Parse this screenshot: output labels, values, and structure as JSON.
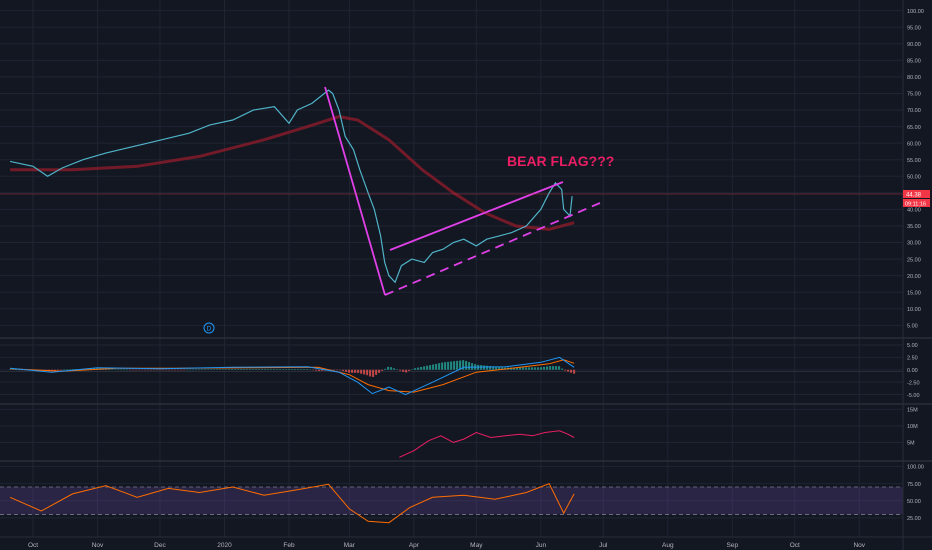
{
  "colors": {
    "background": "#131722",
    "grid": "#1f2433",
    "axis_text": "#b2b5be",
    "price": "#4fb3c8",
    "ma": "#8c1c2b",
    "trendline": "#e040e8",
    "annotation": "#e91e63",
    "price_tag": "#f23645",
    "macd": "#2196f3",
    "signal": "#ff6d00",
    "hist_up": "#26a69a",
    "hist_down": "#ef5350",
    "volume": "#e91e63",
    "rsi": "#ff6d00",
    "rsi_band": "#7e57c2"
  },
  "time_axis": {
    "labels": [
      "Oct",
      "Nov",
      "Dec",
      "2020",
      "Feb",
      "Mar",
      "Apr",
      "May",
      "Jun",
      "Jul",
      "Aug",
      "Sep",
      "Oct",
      "Nov"
    ]
  },
  "main_panel": {
    "annotation": "BEAR FLAG???",
    "price_tag": "44.38",
    "countdown_tag": "09:11:16",
    "event_marker": "D"
  },
  "chart_data": [
    {
      "type": "line",
      "panel": "price",
      "ylim": [
        3,
        102
      ],
      "yticks": [
        "100.00",
        "95.00",
        "90.00",
        "85.00",
        "80.00",
        "75.00",
        "70.00",
        "65.00",
        "60.00",
        "55.00",
        "50.00",
        "45.00",
        "40.00",
        "35.00",
        "30.00",
        "25.00",
        "20.00",
        "15.00",
        "10.00",
        "5.00"
      ],
      "series": [
        {
          "key": "price",
          "points": [
            [
              "2019-09-20",
              54.5
            ],
            [
              "2019-10-01",
              53
            ],
            [
              "2019-10-08",
              50
            ],
            [
              "2019-10-15",
              52.5
            ],
            [
              "2019-10-25",
              55
            ],
            [
              "2019-11-05",
              57
            ],
            [
              "2019-11-15",
              58.5
            ],
            [
              "2019-11-25",
              60
            ],
            [
              "2019-12-05",
              61.5
            ],
            [
              "2019-12-15",
              63
            ],
            [
              "2019-12-25",
              65.5
            ],
            [
              "2020-01-05",
              67
            ],
            [
              "2020-01-15",
              70
            ],
            [
              "2020-01-25",
              71
            ],
            [
              "2020-02-01",
              66
            ],
            [
              "2020-02-05",
              70
            ],
            [
              "2020-02-12",
              72
            ],
            [
              "2020-02-20",
              76
            ],
            [
              "2020-02-22",
              75
            ],
            [
              "2020-02-25",
              70
            ],
            [
              "2020-02-28",
              62
            ],
            [
              "2020-03-03",
              58
            ],
            [
              "2020-03-06",
              52
            ],
            [
              "2020-03-10",
              45
            ],
            [
              "2020-03-13",
              40
            ],
            [
              "2020-03-16",
              32
            ],
            [
              "2020-03-18",
              24
            ],
            [
              "2020-03-20",
              20
            ],
            [
              "2020-03-23",
              18
            ],
            [
              "2020-03-26",
              23
            ],
            [
              "2020-03-31",
              25
            ],
            [
              "2020-04-06",
              24
            ],
            [
              "2020-04-10",
              27
            ],
            [
              "2020-04-15",
              28
            ],
            [
              "2020-04-20",
              30
            ],
            [
              "2020-04-25",
              31
            ],
            [
              "2020-05-01",
              29
            ],
            [
              "2020-05-06",
              31
            ],
            [
              "2020-05-12",
              32
            ],
            [
              "2020-05-18",
              33
            ],
            [
              "2020-05-25",
              35
            ],
            [
              "2020-06-01",
              40
            ],
            [
              "2020-06-05",
              45
            ],
            [
              "2020-06-08",
              48
            ],
            [
              "2020-06-11",
              46
            ],
            [
              "2020-06-12",
              40
            ],
            [
              "2020-06-15",
              38
            ],
            [
              "2020-06-16",
              44
            ]
          ]
        },
        {
          "key": "ma",
          "points": [
            [
              "2019-09-20",
              52
            ],
            [
              "2019-10-20",
              52
            ],
            [
              "2019-11-20",
              53
            ],
            [
              "2019-12-20",
              56
            ],
            [
              "2020-01-20",
              61
            ],
            [
              "2020-02-10",
              65
            ],
            [
              "2020-02-25",
              68
            ],
            [
              "2020-03-05",
              67
            ],
            [
              "2020-03-20",
              61
            ],
            [
              "2020-04-05",
              52
            ],
            [
              "2020-04-20",
              45
            ],
            [
              "2020-05-05",
              39
            ],
            [
              "2020-05-20",
              35
            ],
            [
              "2020-06-05",
              34
            ],
            [
              "2020-06-17",
              36
            ]
          ]
        }
      ]
    },
    {
      "type": "bar",
      "panel": "macd",
      "ylim": [
        -6.5,
        6
      ],
      "yticks": [
        "5.00",
        "2.50",
        "0.00",
        "-2.50",
        "-5.00"
      ],
      "series": [
        {
          "key": "macd",
          "points": [
            [
              "2019-09-20",
              0.3
            ],
            [
              "2019-10-10",
              -0.5
            ],
            [
              "2019-11-01",
              0.4
            ],
            [
              "2019-12-01",
              0.2
            ],
            [
              "2020-01-05",
              0.5
            ],
            [
              "2020-02-10",
              0.6
            ],
            [
              "2020-02-25",
              -0.5
            ],
            [
              "2020-03-05",
              -2.5
            ],
            [
              "2020-03-12",
              -4.8
            ],
            [
              "2020-03-20",
              -3.5
            ],
            [
              "2020-03-28",
              -5
            ],
            [
              "2020-04-10",
              -2.5
            ],
            [
              "2020-04-25",
              0.5
            ],
            [
              "2020-05-15",
              0.6
            ],
            [
              "2020-06-01",
              1.5
            ],
            [
              "2020-06-10",
              2.5
            ],
            [
              "2020-06-17",
              0.5
            ]
          ]
        },
        {
          "key": "signal",
          "points": [
            [
              "2019-09-20",
              0.2
            ],
            [
              "2019-10-15",
              -0.3
            ],
            [
              "2019-11-10",
              0.3
            ],
            [
              "2019-12-10",
              0.3
            ],
            [
              "2020-01-15",
              0.4
            ],
            [
              "2020-02-15",
              0.5
            ],
            [
              "2020-03-01",
              -1
            ],
            [
              "2020-03-10",
              -3
            ],
            [
              "2020-03-20",
              -4.2
            ],
            [
              "2020-04-01",
              -4.5
            ],
            [
              "2020-04-15",
              -3
            ],
            [
              "2020-05-01",
              -0.5
            ],
            [
              "2020-05-20",
              0.4
            ],
            [
              "2020-06-05",
              1.2
            ],
            [
              "2020-06-12",
              2
            ],
            [
              "2020-06-17",
              1.3
            ]
          ]
        }
      ]
    },
    {
      "type": "line",
      "panel": "volume",
      "ylim": [
        0,
        16
      ],
      "yticks": [
        "15M",
        "10M",
        "5M"
      ],
      "series": [
        {
          "key": "volume",
          "points": [
            [
              "2020-03-25",
              0.5
            ],
            [
              "2020-04-01",
              2.5
            ],
            [
              "2020-04-08",
              5.5
            ],
            [
              "2020-04-14",
              7
            ],
            [
              "2020-04-20",
              5
            ],
            [
              "2020-04-25",
              6
            ],
            [
              "2020-05-01",
              8
            ],
            [
              "2020-05-08",
              6.5
            ],
            [
              "2020-05-15",
              7
            ],
            [
              "2020-05-22",
              7.5
            ],
            [
              "2020-05-28",
              7
            ],
            [
              "2020-06-03",
              8
            ],
            [
              "2020-06-10",
              8.5
            ],
            [
              "2020-06-14",
              7.5
            ],
            [
              "2020-06-17",
              6.5
            ]
          ]
        }
      ]
    },
    {
      "type": "line",
      "panel": "rsi",
      "ylim": [
        0,
        105
      ],
      "yticks": [
        "100.00",
        "75.00",
        "50.00",
        "25.00"
      ],
      "band": [
        30,
        70
      ],
      "series": [
        {
          "key": "rsi",
          "points": [
            [
              "2019-09-20",
              55
            ],
            [
              "2019-10-05",
              35
            ],
            [
              "2019-10-20",
              60
            ],
            [
              "2019-11-05",
              72
            ],
            [
              "2019-11-20",
              55
            ],
            [
              "2019-12-05",
              68
            ],
            [
              "2019-12-20",
              62
            ],
            [
              "2020-01-05",
              70
            ],
            [
              "2020-01-20",
              58
            ],
            [
              "2020-02-05",
              66
            ],
            [
              "2020-02-20",
              74
            ],
            [
              "2020-03-01",
              38
            ],
            [
              "2020-03-10",
              20
            ],
            [
              "2020-03-20",
              18
            ],
            [
              "2020-03-30",
              40
            ],
            [
              "2020-04-10",
              55
            ],
            [
              "2020-04-25",
              58
            ],
            [
              "2020-05-10",
              52
            ],
            [
              "2020-05-25",
              62
            ],
            [
              "2020-06-05",
              75
            ],
            [
              "2020-06-12",
              32
            ],
            [
              "2020-06-17",
              60
            ]
          ]
        }
      ]
    }
  ]
}
